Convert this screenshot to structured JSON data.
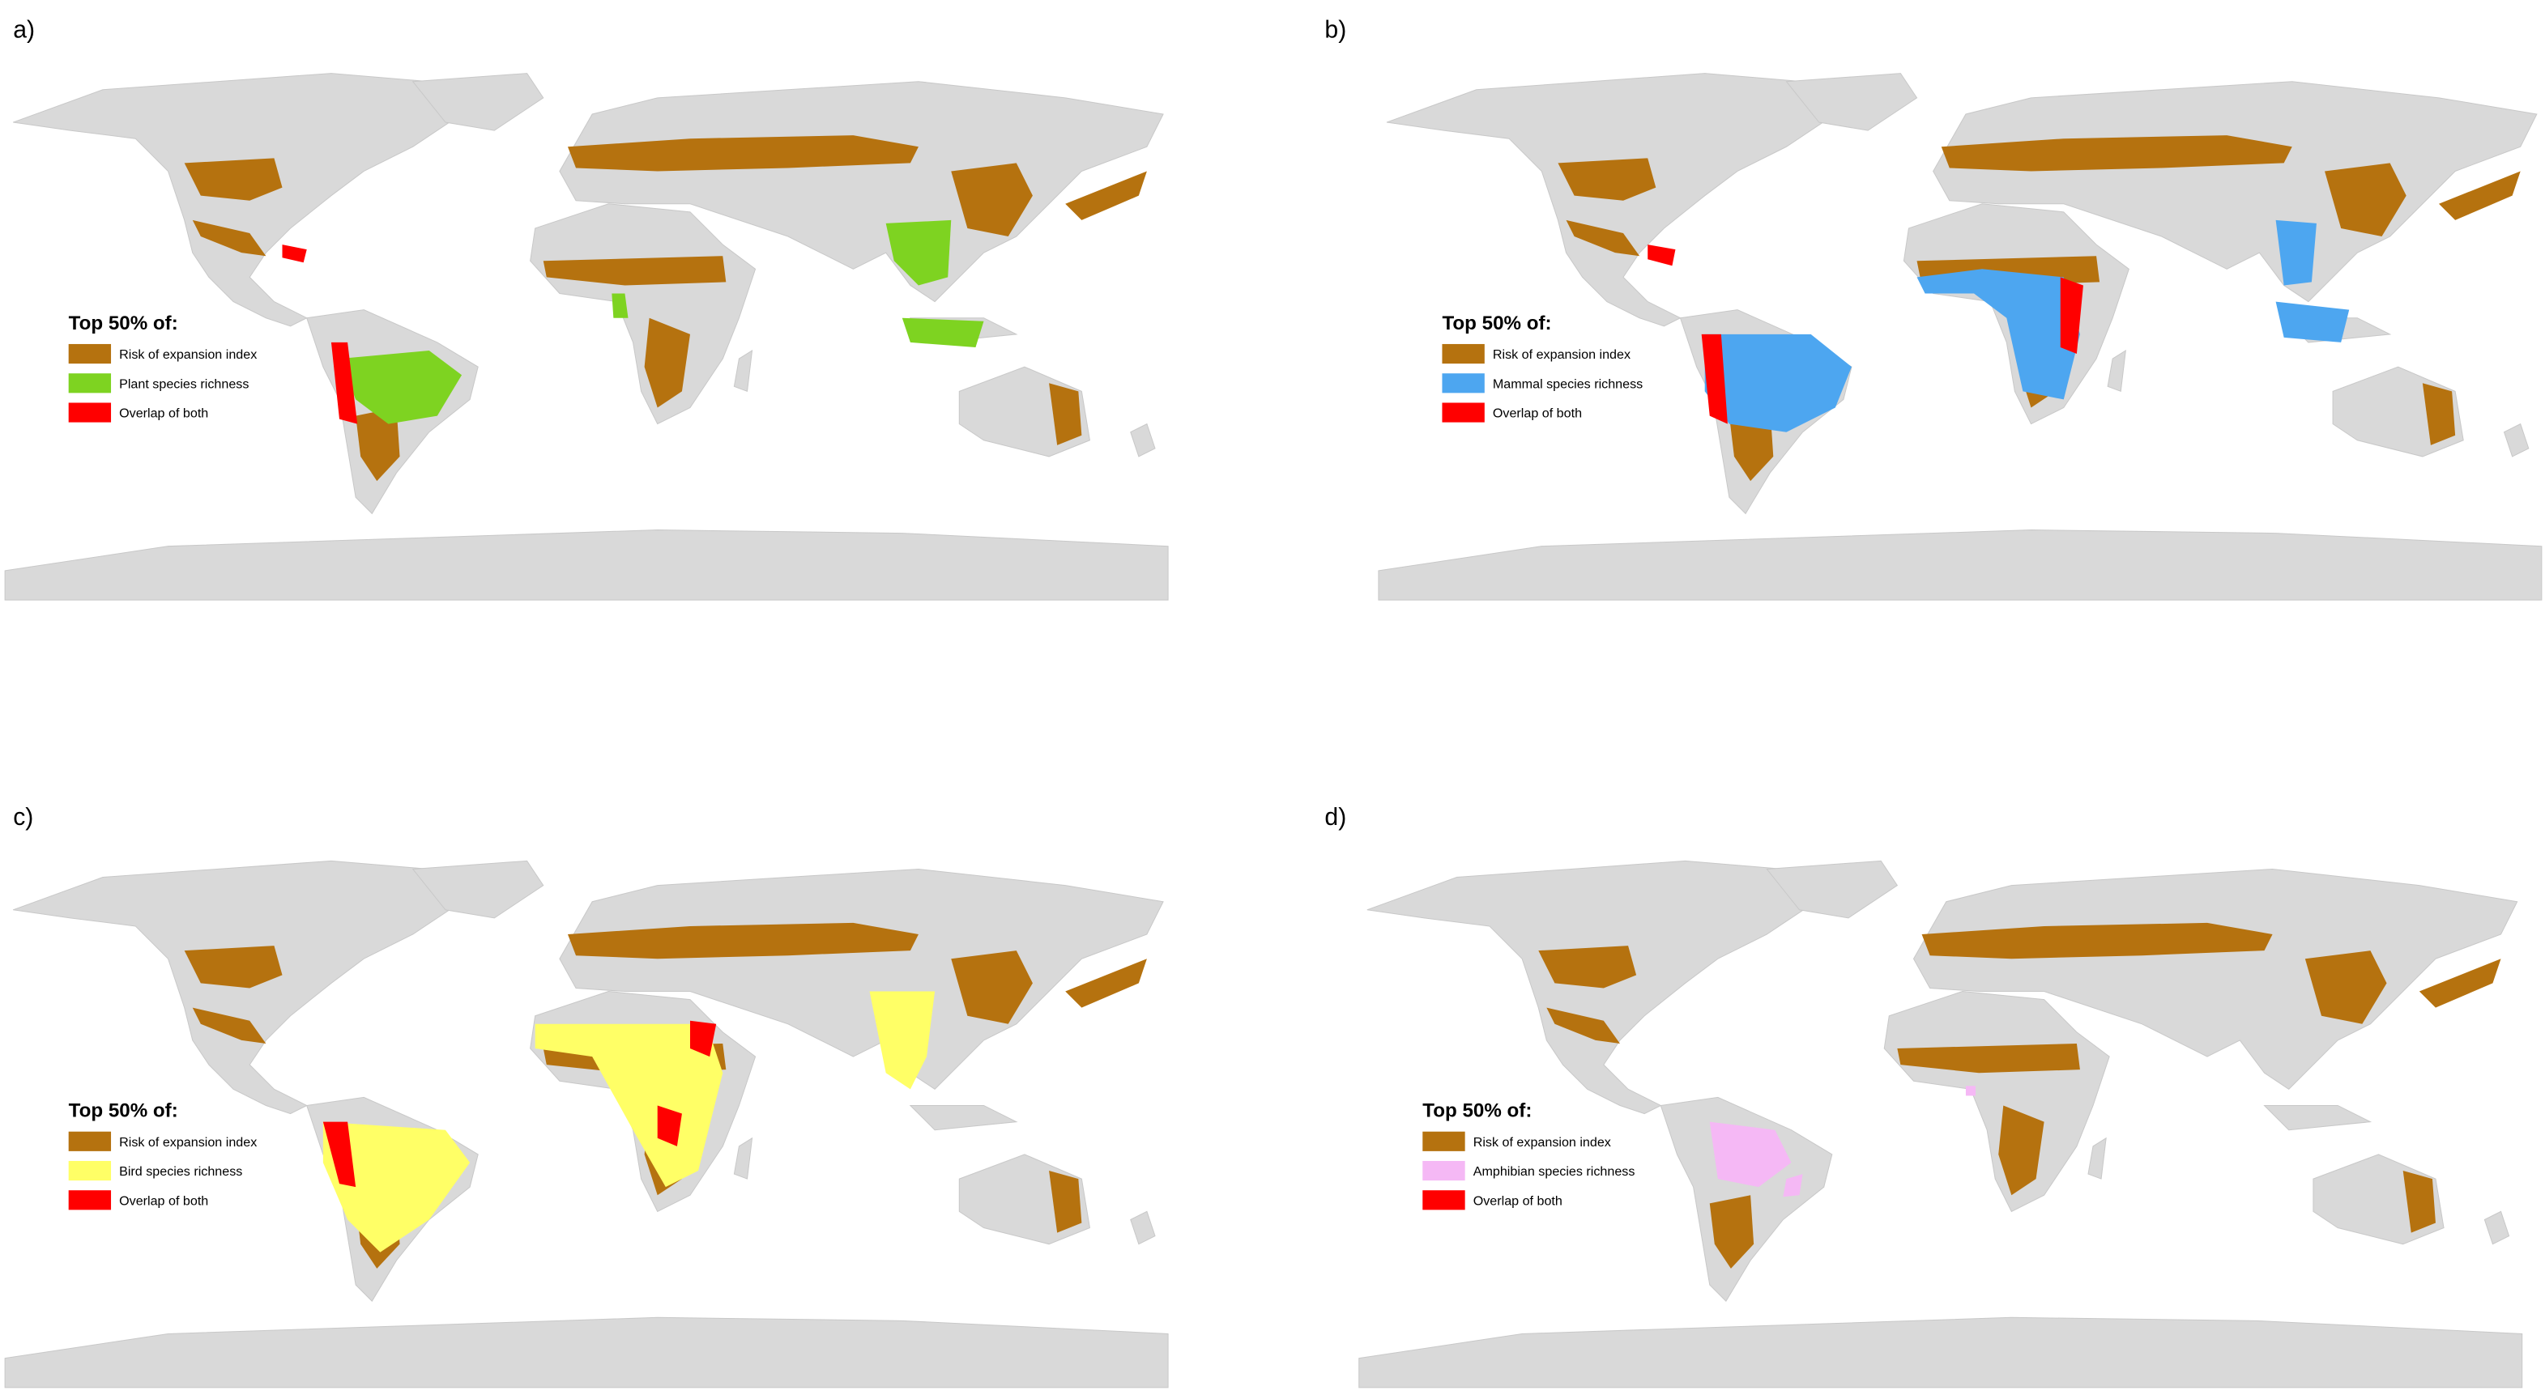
{
  "panels": [
    {
      "label": "a)",
      "legend": {
        "title": "Top 50% of:",
        "items": [
          {
            "text": "Risk of expansion index",
            "color": "#b5720f"
          },
          {
            "text": "Plant species richness",
            "color": "#7ed321"
          },
          {
            "text": "Overlap of both",
            "color": "#ff0000"
          }
        ]
      }
    },
    {
      "label": "b)",
      "legend": {
        "title": "Top 50% of:",
        "items": [
          {
            "text": "Risk of expansion index",
            "color": "#b5720f"
          },
          {
            "text": "Mammal species richness",
            "color": "#4da6f0"
          },
          {
            "text": "Overlap of both",
            "color": "#ff0000"
          }
        ]
      }
    },
    {
      "label": "c)",
      "legend": {
        "title": "Top 50% of:",
        "items": [
          {
            "text": "Risk of expansion index",
            "color": "#b5720f"
          },
          {
            "text": "Bird species richness",
            "color": "#ffff66"
          },
          {
            "text": "Overlap of both",
            "color": "#ff0000"
          }
        ]
      }
    },
    {
      "label": "d)",
      "legend": {
        "title": "Top 50% of:",
        "items": [
          {
            "text": "Risk of expansion index",
            "color": "#b5720f"
          },
          {
            "text": "Amphibian species richness",
            "color": "#f5b8f5"
          },
          {
            "text": "Overlap of both",
            "color": "#ff0000"
          }
        ]
      }
    }
  ]
}
